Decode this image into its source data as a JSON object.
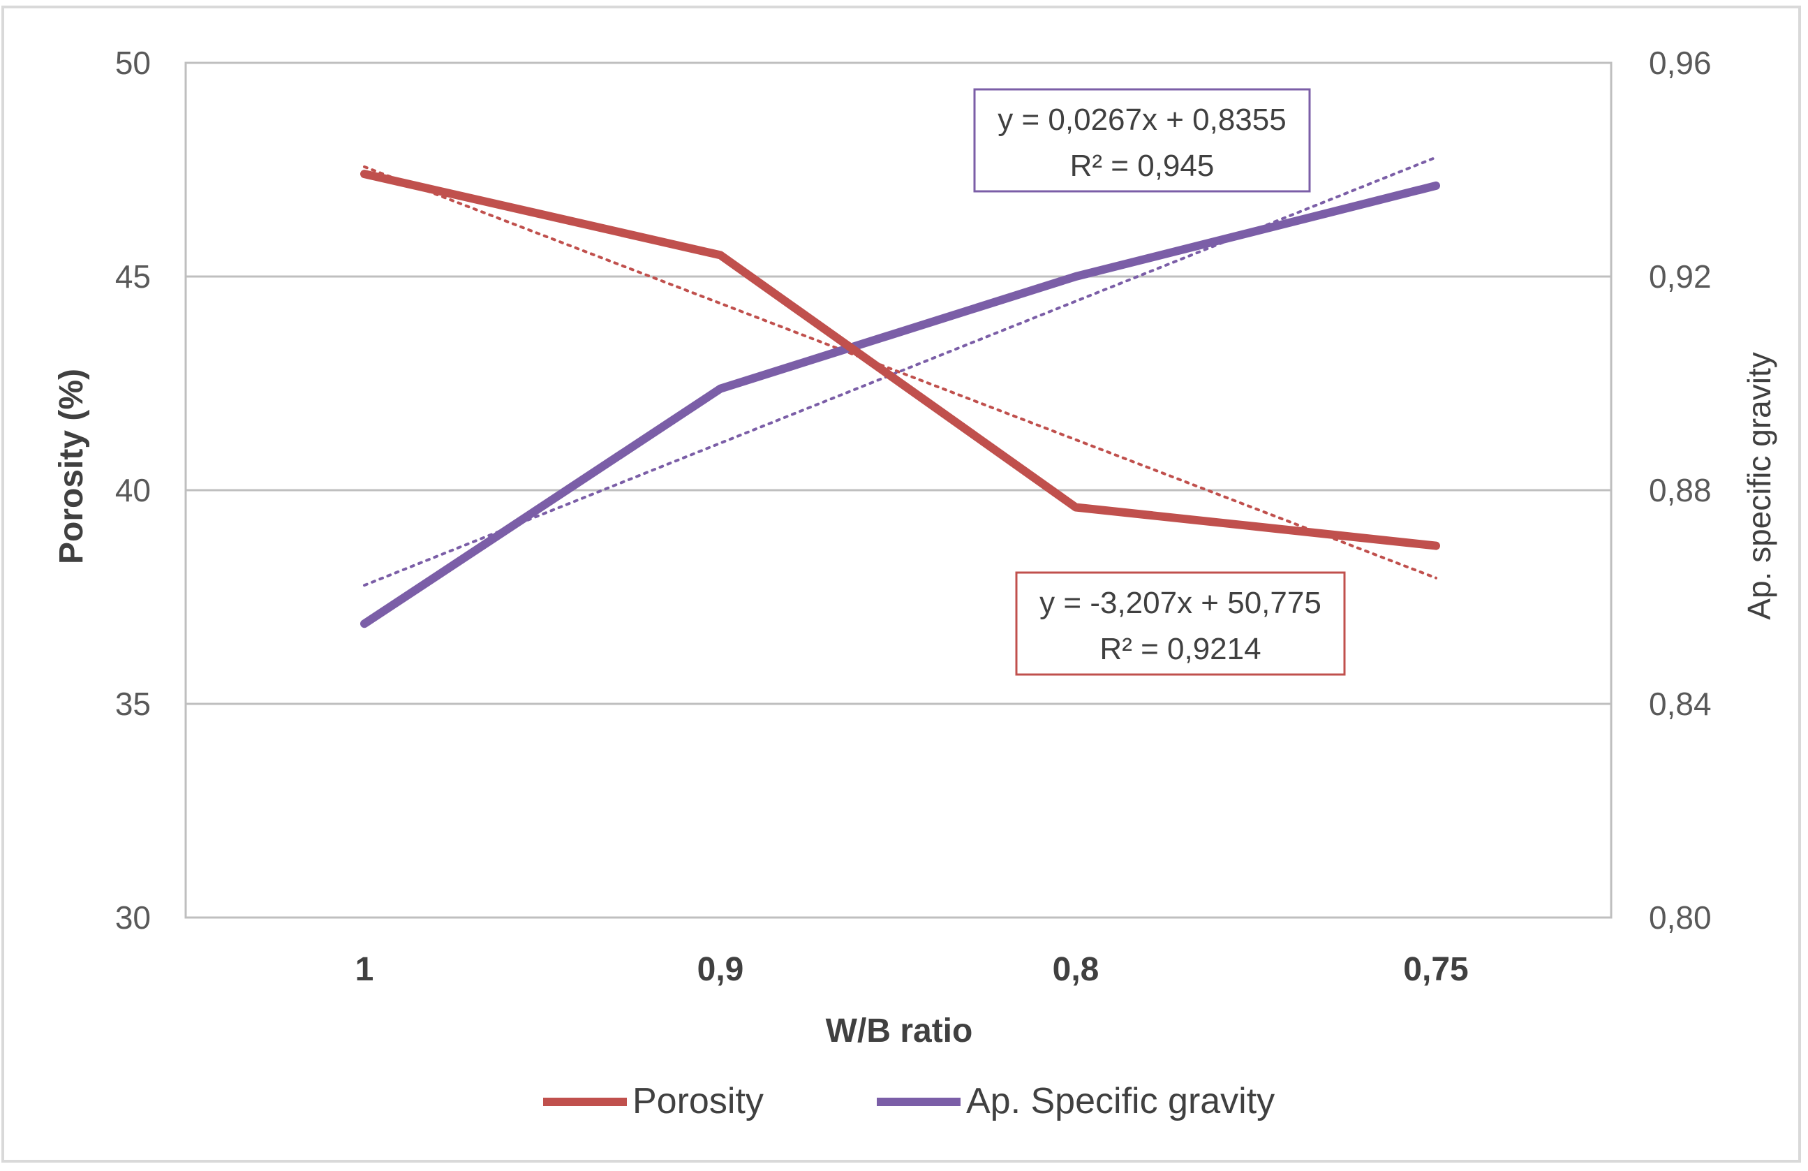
{
  "chart_data": {
    "type": "line",
    "title": "",
    "xlabel": "W/B ratio",
    "ylabel": "Porosity (%)",
    "y2label": "Ap. specific gravity",
    "categories": [
      "1",
      "0,9",
      "0,8",
      "0,75"
    ],
    "ylim": [
      30,
      50
    ],
    "yticks": [
      "30",
      "35",
      "40",
      "45",
      "50"
    ],
    "y2lim": [
      0.8,
      0.96
    ],
    "y2ticks": [
      "0,80",
      "0,84",
      "0,88",
      "0,92",
      "0,96"
    ],
    "grid": true,
    "legend_position": "bottom",
    "series": [
      {
        "name": "Porosity",
        "axis": "left",
        "color": "#c0504d",
        "values": [
          47.4,
          45.5,
          39.6,
          38.7
        ],
        "trendline": {
          "slope": -3.207,
          "intercept": 50.775,
          "equation": "y = -3,207x + 50,775",
          "r2": "R² = 0,9214"
        }
      },
      {
        "name": "Ap. Specific gravity",
        "axis": "right",
        "color": "#7b5ea7",
        "values": [
          0.855,
          0.899,
          0.92,
          0.937
        ],
        "trendline": {
          "slope": 0.0267,
          "intercept": 0.8355,
          "equation": "y = 0,0267x + 0,8355",
          "r2": "R² = 0,945"
        }
      }
    ]
  }
}
